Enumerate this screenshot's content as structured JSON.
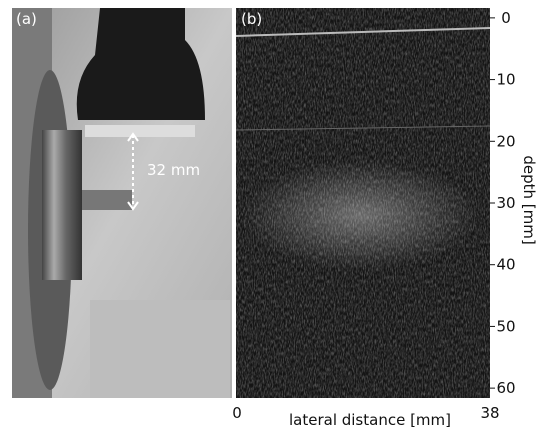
{
  "panel_a": {
    "label": "(a)",
    "annotation": "32 mm"
  },
  "panel_b": {
    "label": "(b)",
    "y_axis": {
      "label": "depth [mm]",
      "lim": [
        -1.6,
        61.6
      ],
      "ticks": [
        0,
        10,
        20,
        30,
        40,
        50,
        60
      ]
    },
    "x_axis": {
      "label": "lateral distance [mm]",
      "lim": [
        0,
        38
      ],
      "ticks": [
        0,
        38
      ]
    }
  }
}
